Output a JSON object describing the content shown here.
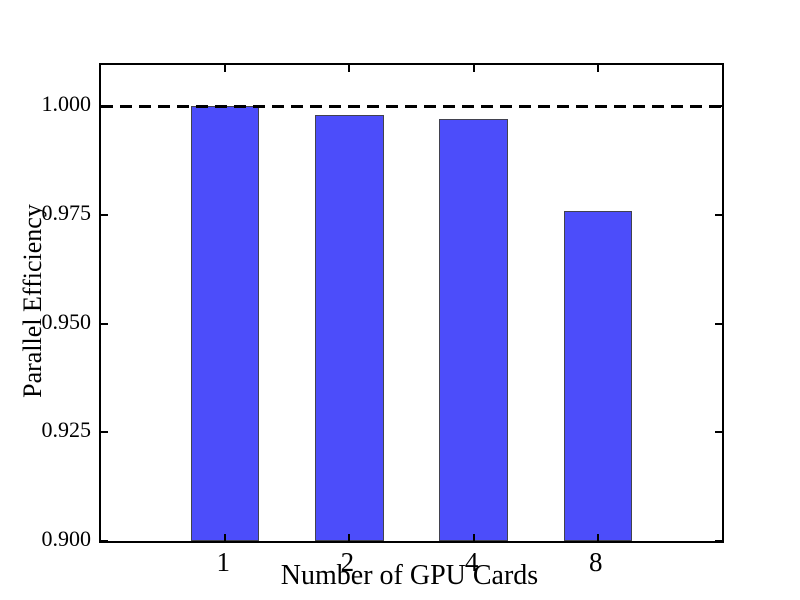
{
  "figure": {
    "background_color": "#ffffff",
    "axis_color": "#000000",
    "text_color": "#000000",
    "bar_fill_color": "#4c4dfa",
    "bar_edge_color": "#42424e",
    "reference_line_color": "#000000"
  },
  "chart_data": {
    "type": "bar",
    "title": "",
    "xlabel": "Number of GPU Cards",
    "ylabel": "Parallel Efficiency",
    "categories": [
      "1",
      "2",
      "4",
      "8"
    ],
    "values": [
      1.0,
      0.998,
      0.997,
      0.976
    ],
    "x_positions": [
      1,
      2,
      3,
      4
    ],
    "xlim": [
      0,
      5
    ],
    "ylim": [
      0.9,
      1.0095
    ],
    "yticks": [
      0.9,
      0.925,
      0.95,
      0.975,
      1.0
    ],
    "ytick_labels": [
      "0.900",
      "0.925",
      "0.950",
      "0.975",
      "1.000"
    ],
    "bar_width_fraction": 0.55,
    "reference_line": {
      "y": 1.0,
      "style": "dashed",
      "color": "#000000"
    },
    "grid": false,
    "legend": null,
    "tick_direction": "in",
    "ticks_on_all_spines": true
  }
}
